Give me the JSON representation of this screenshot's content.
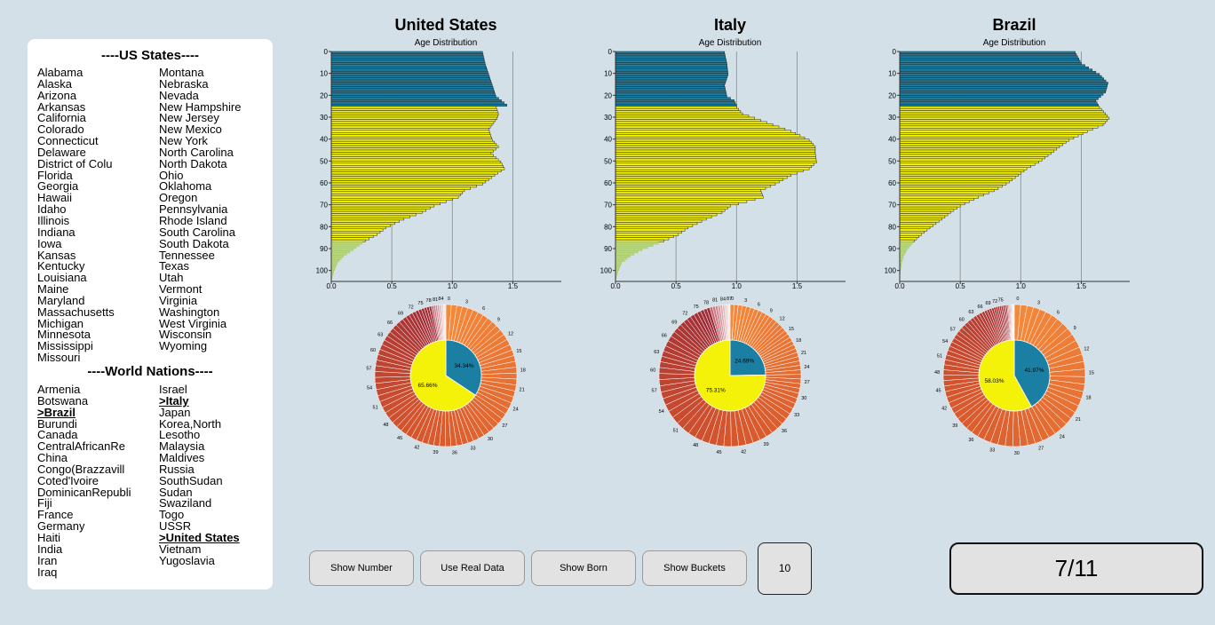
{
  "sidebar": {
    "us_header": "----US States----",
    "us_col1": [
      "Alabama",
      "Alaska",
      "Arizona",
      "Arkansas",
      "California",
      "Colorado",
      "Connecticut",
      "Delaware",
      "District of Colu",
      "Florida",
      "Georgia",
      "Hawaii",
      "Idaho",
      "Illinois",
      "Indiana",
      "Iowa",
      "Kansas",
      "Kentucky",
      "Louisiana",
      "Maine",
      "Maryland",
      "Massachusetts",
      "Michigan",
      "Minnesota",
      "Mississippi",
      "Missouri"
    ],
    "us_col2": [
      "Montana",
      "Nebraska",
      "Nevada",
      "New Hampshire",
      "New Jersey",
      "New Mexico",
      "New York",
      "North Carolina",
      "North Dakota",
      "Ohio",
      "Oklahoma",
      "Oregon",
      "Pennsylvania",
      "Rhode Island",
      "South Carolina",
      "South Dakota",
      "Tennessee",
      "Texas",
      "Utah",
      "Vermont",
      "Virginia",
      "Washington",
      "West Virginia",
      "Wisconsin",
      "Wyoming"
    ],
    "world_header": "----World Nations----",
    "world_col1": [
      "Armenia",
      "Botswana",
      ">Brazil",
      "Burundi",
      "Canada",
      "CentralAfricanRe",
      "China",
      "Congo(Brazzavill",
      "Coted'Ivoire",
      "DominicanRepubli",
      "Fiji",
      "France",
      "Germany",
      "Haiti",
      "India",
      "Iran",
      "Iraq"
    ],
    "world_col2": [
      "Israel",
      ">Italy",
      "Japan",
      "Korea,North",
      "Lesotho",
      "Malaysia",
      "Maldives",
      "Russia",
      "SouthSudan",
      "Sudan",
      "Swaziland",
      "Togo",
      "USSR",
      ">United States",
      "Vietnam",
      "Yugoslavia"
    ],
    "selected": [
      ">Brazil",
      ">Italy",
      ">United States"
    ]
  },
  "buttons": {
    "show_number": "Show Number",
    "use_real_data": "Use Real Data",
    "show_born": "Show Born",
    "show_buckets": "Show Buckets"
  },
  "bucket_value": "10",
  "progress": "7/11",
  "colors": {
    "young": "#1a7fa3",
    "adult": "#f5f20a",
    "old": "#b6d77a",
    "background": "#d3e0e8"
  },
  "chart_data": [
    {
      "type": "bar",
      "title": "United States",
      "subtitle": "Age Distribution",
      "orientation": "horizontal",
      "y_ticks": [
        0,
        10,
        20,
        30,
        40,
        50,
        60,
        70,
        80,
        90,
        100
      ],
      "x_ticks": [
        "0.0",
        "0.5",
        "1.0",
        "1.5"
      ],
      "xlim": [
        0,
        1.9
      ],
      "ylim": [
        0,
        105
      ],
      "grid_x": true,
      "profile": [
        [
          0,
          1.25
        ],
        [
          5,
          1.27
        ],
        [
          10,
          1.3
        ],
        [
          15,
          1.33
        ],
        [
          20,
          1.36
        ],
        [
          24,
          1.45
        ],
        [
          25,
          1.36
        ],
        [
          28,
          1.38
        ],
        [
          30,
          1.37
        ],
        [
          35,
          1.3
        ],
        [
          40,
          1.33
        ],
        [
          43,
          1.38
        ],
        [
          46,
          1.32
        ],
        [
          50,
          1.4
        ],
        [
          53,
          1.43
        ],
        [
          56,
          1.35
        ],
        [
          60,
          1.25
        ],
        [
          63,
          1.1
        ],
        [
          66,
          1.05
        ],
        [
          70,
          0.85
        ],
        [
          73,
          0.75
        ],
        [
          76,
          0.6
        ],
        [
          80,
          0.45
        ],
        [
          83,
          0.38
        ],
        [
          86,
          0.28
        ],
        [
          90,
          0.18
        ],
        [
          93,
          0.1
        ],
        [
          96,
          0.05
        ],
        [
          100,
          0.02
        ],
        [
          104,
          0.0
        ]
      ],
      "pie": {
        "inner": [
          {
            "label": "34.34%",
            "value": 34.34
          },
          {
            "label": "65.66%",
            "value": 65.66
          }
        ],
        "ring_ticks": [
          "0",
          "3",
          "6",
          "9",
          "12",
          "15",
          "18",
          "21",
          "24",
          "27",
          "30",
          "33",
          "36",
          "39",
          "42",
          "45",
          "48",
          "51",
          "54",
          "57",
          "60",
          "63",
          "66",
          "69",
          "72",
          "75",
          "78",
          "81",
          "84"
        ]
      }
    },
    {
      "type": "bar",
      "title": "Italy",
      "subtitle": "Age Distribution",
      "orientation": "horizontal",
      "y_ticks": [
        0,
        10,
        20,
        30,
        40,
        50,
        60,
        70,
        80,
        90,
        100
      ],
      "x_ticks": [
        "0.0",
        "0.5",
        "1.0",
        "1.5"
      ],
      "xlim": [
        0,
        1.9
      ],
      "ylim": [
        0,
        105
      ],
      "grid_x": true,
      "profile": [
        [
          0,
          0.9
        ],
        [
          5,
          0.92
        ],
        [
          10,
          0.93
        ],
        [
          15,
          0.9
        ],
        [
          20,
          0.92
        ],
        [
          22,
          0.98
        ],
        [
          24,
          1.0
        ],
        [
          25,
          1.0
        ],
        [
          28,
          1.05
        ],
        [
          30,
          1.15
        ],
        [
          33,
          1.3
        ],
        [
          36,
          1.45
        ],
        [
          40,
          1.6
        ],
        [
          43,
          1.65
        ],
        [
          46,
          1.65
        ],
        [
          50,
          1.66
        ],
        [
          53,
          1.6
        ],
        [
          56,
          1.45
        ],
        [
          60,
          1.32
        ],
        [
          63,
          1.2
        ],
        [
          66,
          1.22
        ],
        [
          70,
          0.95
        ],
        [
          73,
          0.88
        ],
        [
          76,
          0.75
        ],
        [
          80,
          0.6
        ],
        [
          83,
          0.52
        ],
        [
          86,
          0.4
        ],
        [
          90,
          0.22
        ],
        [
          93,
          0.12
        ],
        [
          96,
          0.05
        ],
        [
          100,
          0.02
        ],
        [
          104,
          0.0
        ]
      ],
      "pie": {
        "inner": [
          {
            "label": "24.69%",
            "value": 24.69
          },
          {
            "label": "75.31%",
            "value": 75.31
          }
        ],
        "ring_ticks": [
          "0",
          "3",
          "6",
          "9",
          "12",
          "15",
          "18",
          "21",
          "24",
          "27",
          "30",
          "33",
          "36",
          "39",
          "42",
          "45",
          "48",
          "51",
          "54",
          "57",
          "60",
          "63",
          "66",
          "69",
          "72",
          "75",
          "78",
          "81",
          "84",
          "87"
        ]
      }
    },
    {
      "type": "bar",
      "title": "Brazil",
      "subtitle": "Age Distribution",
      "orientation": "horizontal",
      "y_ticks": [
        0,
        10,
        20,
        30,
        40,
        50,
        60,
        70,
        80,
        90,
        100
      ],
      "x_ticks": [
        "0.0",
        "0.5",
        "1.0",
        "1.5"
      ],
      "xlim": [
        0,
        1.9
      ],
      "ylim": [
        0,
        105
      ],
      "grid_x": true,
      "profile": [
        [
          0,
          1.45
        ],
        [
          5,
          1.5
        ],
        [
          10,
          1.65
        ],
        [
          14,
          1.72
        ],
        [
          18,
          1.7
        ],
        [
          22,
          1.62
        ],
        [
          25,
          1.65
        ],
        [
          28,
          1.7
        ],
        [
          30,
          1.73
        ],
        [
          33,
          1.68
        ],
        [
          36,
          1.55
        ],
        [
          40,
          1.4
        ],
        [
          43,
          1.32
        ],
        [
          46,
          1.25
        ],
        [
          50,
          1.15
        ],
        [
          53,
          1.05
        ],
        [
          56,
          0.98
        ],
        [
          60,
          0.88
        ],
        [
          63,
          0.78
        ],
        [
          66,
          0.65
        ],
        [
          70,
          0.5
        ],
        [
          73,
          0.42
        ],
        [
          76,
          0.35
        ],
        [
          80,
          0.25
        ],
        [
          83,
          0.18
        ],
        [
          86,
          0.12
        ],
        [
          90,
          0.06
        ],
        [
          93,
          0.03
        ],
        [
          96,
          0.015
        ],
        [
          100,
          0.005
        ],
        [
          104,
          0.0
        ]
      ],
      "pie": {
        "inner": [
          {
            "label": "41.97%",
            "value": 41.97
          },
          {
            "label": "58.03%",
            "value": 58.03
          }
        ],
        "ring_ticks": [
          "0",
          "3",
          "6",
          "9",
          "12",
          "15",
          "18",
          "21",
          "24",
          "27",
          "30",
          "33",
          "36",
          "39",
          "42",
          "45",
          "48",
          "51",
          "54",
          "57",
          "60",
          "63",
          "66",
          "69",
          "72",
          "75"
        ]
      }
    }
  ]
}
